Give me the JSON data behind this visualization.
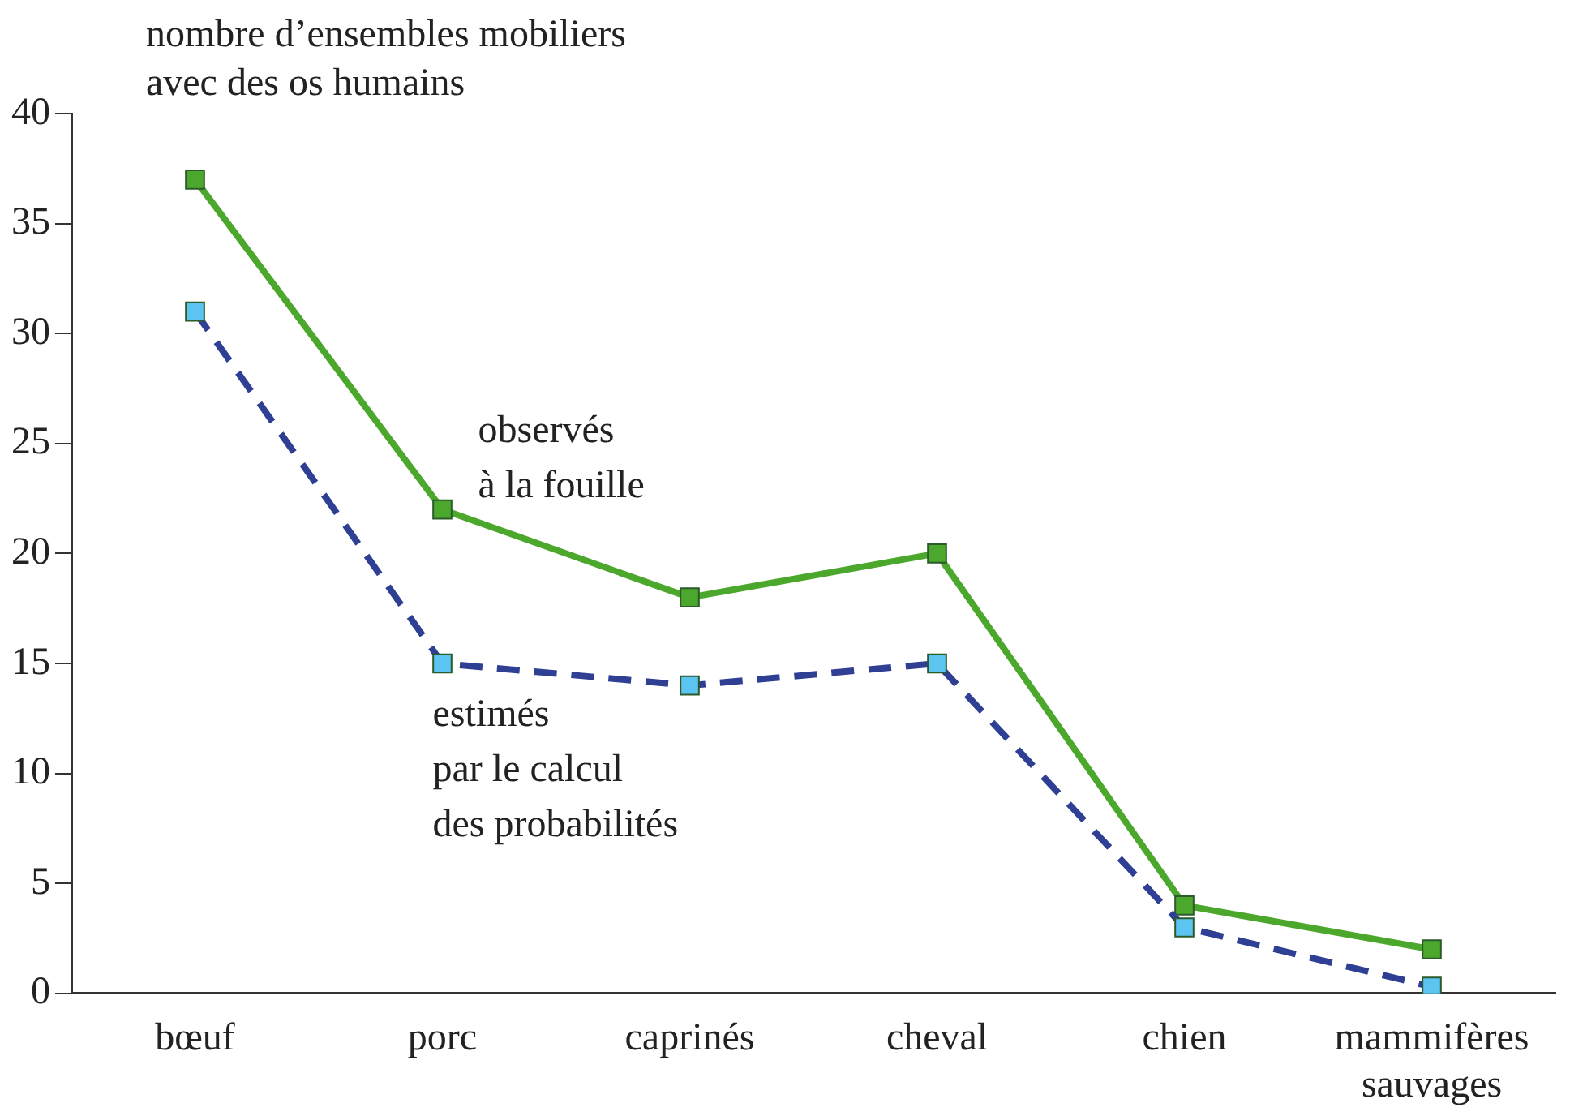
{
  "chart_data": {
    "type": "line",
    "ylabel": "nombre d’ensembles mobiliers\navec des os humains",
    "categories": [
      "bœuf",
      "porc",
      "caprinés",
      "cheval",
      "chien",
      "mammifères\nsauvages"
    ],
    "series": [
      {
        "name": "observés\nà la fouille",
        "color": "#4ca82c",
        "values": [
          37,
          22,
          18,
          20,
          4,
          2
        ],
        "line_style": "solid"
      },
      {
        "name": "estimés\npar le calcul\ndes probabilités",
        "color": "#2e3f94",
        "colors": [
          "#5bc4f0",
          "#5bc4f0",
          "#5bc4f0",
          "#5bc4f0",
          "#5bc4f0",
          "#5bc4f0"
        ],
        "values": [
          31,
          15,
          14,
          15,
          3,
          0.3
        ],
        "line_style": "dashed"
      }
    ],
    "ylim": [
      0,
      40
    ],
    "yticks": [
      0,
      5,
      10,
      15,
      20,
      25,
      30,
      35,
      40
    ],
    "grid": false,
    "legend": false,
    "marker": "square"
  }
}
